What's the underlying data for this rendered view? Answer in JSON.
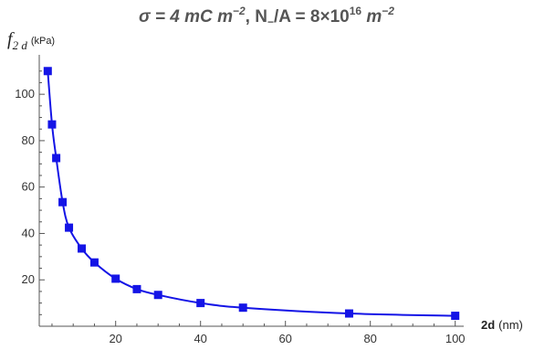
{
  "chart_data": {
    "type": "line",
    "title": "σ = 4 mC m⁻², N₋/A = 8×10¹⁶ m⁻²",
    "title_parts": {
      "sigma": "σ = 4 mC ",
      "m1": "m",
      "exp1": "−2",
      "mid": ", N",
      "sub": "−",
      "rest": "/A = 8×10",
      "exp16": "16",
      "m2": " m",
      "exp2": "−2"
    },
    "ylabel": {
      "symbol": "f",
      "subscript": "2 d",
      "unit": "(kPa)"
    },
    "xlabel": {
      "name": "2d",
      "unit": "(nm)"
    },
    "xlim": [
      2,
      102
    ],
    "ylim": [
      0,
      117
    ],
    "xticks": [
      20,
      40,
      60,
      80,
      100
    ],
    "yticks": [
      20,
      40,
      60,
      80,
      100
    ],
    "grid": false,
    "series": [
      {
        "color": "#1414e6",
        "marker": "square",
        "x": [
          4,
          5,
          6,
          7.5,
          9,
          12,
          15,
          20,
          25,
          30,
          40,
          50,
          75,
          100
        ],
        "y": [
          110,
          87,
          72.5,
          53.5,
          42.5,
          33.5,
          27.5,
          20.5,
          16,
          13.5,
          10,
          8,
          5.5,
          4.5
        ]
      }
    ]
  }
}
